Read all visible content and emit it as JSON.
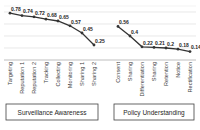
{
  "chart_data": {
    "type": "line",
    "categories": [
      "Targeting",
      "Reputation 1",
      "Reputation 2",
      "Tracking",
      "Collecting",
      "Monitoring",
      "Sharing 1",
      "Sharing 2",
      null,
      "Consent",
      "Sharing",
      "Differentiation",
      "Sharing",
      "Retention",
      "Notice",
      "Rectification"
    ],
    "series": [
      {
        "name": "Surveillance Awareness",
        "color": "#333333",
        "marker": "circle",
        "values": [
          0.78,
          0.74,
          0.72,
          0.68,
          0.65,
          0.57,
          0.45,
          0.25,
          null,
          null,
          null,
          null,
          null,
          null,
          null,
          null
        ]
      },
      {
        "name": "Policy Understanding",
        "color": "#333333",
        "marker": "circle",
        "values": [
          null,
          null,
          null,
          null,
          null,
          null,
          null,
          null,
          null,
          0.56,
          0.4,
          0.22,
          0.21,
          0.2,
          0.18,
          0.14
        ]
      }
    ],
    "ylim": [
      0,
      0.9
    ],
    "yticks": [
      0,
      0.2,
      0.4,
      0.6,
      0.8
    ],
    "grid": true,
    "data_labels": true,
    "tick_labels": "x"
  }
}
